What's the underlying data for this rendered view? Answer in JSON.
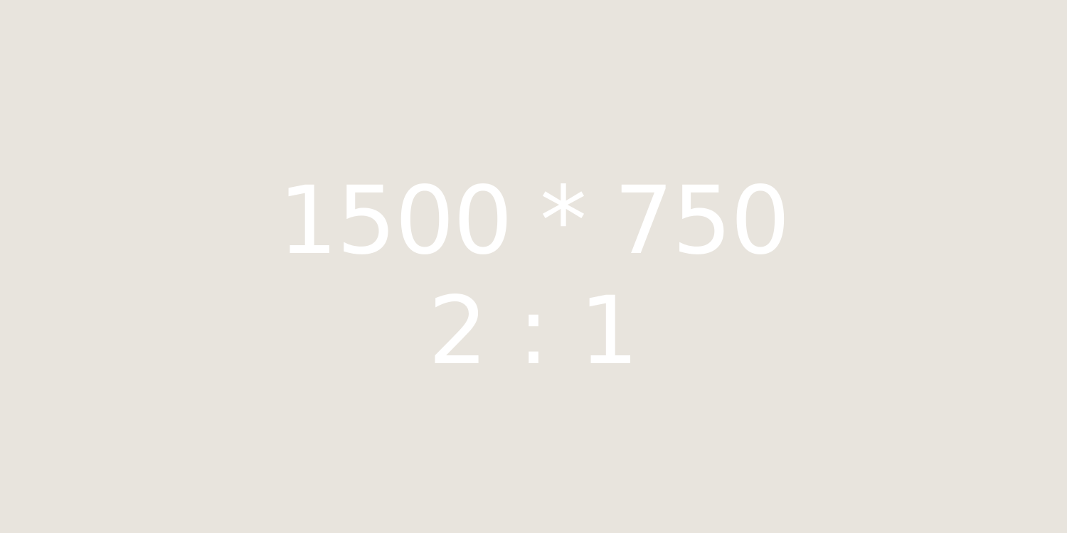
{
  "placeholder": {
    "dimensions_text": "1500 * 750",
    "ratio_text": "2 : 1",
    "background_color": "#e8e4dd",
    "text_color": "#ffffff"
  }
}
